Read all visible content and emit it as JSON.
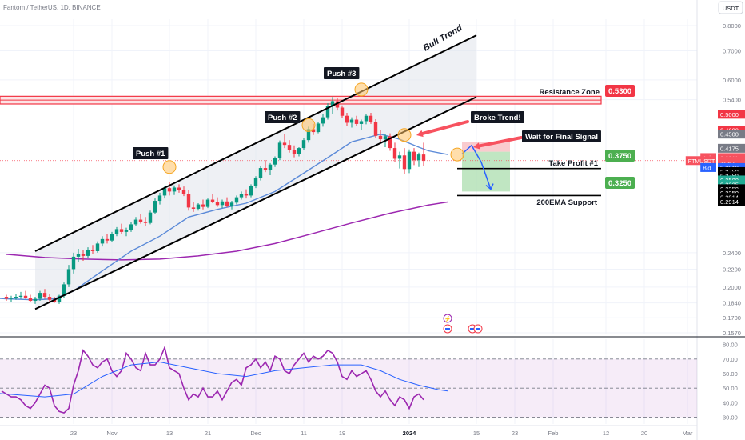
{
  "header": {
    "symbol_line": "Fantom / TetherUS, 1D, BINANCE",
    "currency": "USDT"
  },
  "chart_data": {
    "type": "candlestick",
    "price_axis": {
      "scale": "log",
      "ticks": [
        "0.8000",
        "0.7000",
        "0.6000",
        "0.5400",
        "0.4175",
        "0.3911",
        "11:57",
        "0.3911",
        "0.3910",
        "0.3750",
        "0.3750",
        "0.3500",
        "0.3325",
        "0.3250",
        "0.3250",
        "0.2914",
        "0.2914",
        "0.2400",
        "0.2200",
        "0.2000",
        "0.1840",
        "0.1700",
        "0.1570"
      ],
      "plain_ticks": [
        {
          "value": 0.8,
          "label": "0.8000"
        },
        {
          "value": 0.7,
          "label": "0.7000"
        },
        {
          "value": 0.6,
          "label": "0.6000"
        },
        {
          "value": 0.54,
          "label": "0.5400"
        },
        {
          "value": 0.24,
          "label": "0.2400"
        },
        {
          "value": 0.22,
          "label": "0.2200"
        },
        {
          "value": 0.2,
          "label": "0.2000"
        },
        {
          "value": 0.184,
          "label": "0.1840"
        },
        {
          "value": 0.17,
          "label": "0.1700"
        },
        {
          "value": 0.157,
          "label": "0.1570"
        }
      ],
      "badges": [
        {
          "label": "0.5000",
          "value": 0.5,
          "bg": "#f23645",
          "fg": "#ffffff"
        },
        {
          "label": "0.4600",
          "value": 0.46,
          "bg": "#f23645",
          "fg": "#ffffff"
        },
        {
          "label": "0.4500",
          "value": 0.45,
          "bg": "#787b86",
          "fg": "#ffffff"
        },
        {
          "label": "0.4175",
          "value": 0.4175,
          "bg": "#787b86",
          "fg": "#ffffff"
        },
        {
          "label": "0.3911",
          "value": 0.3975,
          "bg": "#f7525f",
          "fg": "#ffffff",
          "tag": "Ask"
        },
        {
          "label": "0.3911",
          "value": 0.3911,
          "bg": "#f7525f",
          "fg": "#ffffff",
          "tag": "FTMUSDT"
        },
        {
          "label": "11:57",
          "value": 0.386,
          "bg": "#f7525f",
          "fg": "#ffffff"
        },
        {
          "label": "0.3910",
          "value": 0.377,
          "bg": "#2962ff",
          "fg": "#ffffff",
          "tag": "Bid"
        },
        {
          "label": "0.3750",
          "value": 0.369,
          "bg": "#000000",
          "fg": "#ffffff"
        },
        {
          "label": "0.3750",
          "value": 0.361,
          "bg": "#000000",
          "fg": "#ffffff"
        },
        {
          "label": "0.3500",
          "value": 0.353,
          "bg": "#22ab94",
          "fg": "#ffffff"
        },
        {
          "label": "0.3325",
          "value": 0.345,
          "bg": "#22ab94",
          "fg": "#ffffff"
        },
        {
          "label": "0.3250",
          "value": 0.337,
          "bg": "#000000",
          "fg": "#ffffff"
        },
        {
          "label": "0.3250",
          "value": 0.3295,
          "bg": "#000000",
          "fg": "#ffffff"
        },
        {
          "label": "0.2914",
          "value": 0.322,
          "bg": "#000000",
          "fg": "#ffffff"
        },
        {
          "label": "0.2914",
          "value": 0.3148,
          "bg": "#000000",
          "fg": "#ffffff"
        }
      ]
    },
    "time_axis": {
      "labels": [
        {
          "label": "23",
          "bar": 14
        },
        {
          "label": "Nov",
          "bar": 22
        },
        {
          "label": "13",
          "bar": 34
        },
        {
          "label": "21",
          "bar": 42
        },
        {
          "label": "Dec",
          "bar": 52
        },
        {
          "label": "11",
          "bar": 62
        },
        {
          "label": "19",
          "bar": 70
        },
        {
          "label": "2024",
          "bar": 84
        },
        {
          "label": "15",
          "bar": 98
        },
        {
          "label": "23",
          "bar": 106
        },
        {
          "label": "Feb",
          "bar": 114
        },
        {
          "label": "12",
          "bar": 125
        },
        {
          "label": "20",
          "bar": 133
        },
        {
          "label": "Mar",
          "bar": 142
        }
      ]
    },
    "candles": [
      [
        0.19,
        0.192,
        0.186,
        0.188
      ],
      [
        0.188,
        0.191,
        0.185,
        0.189
      ],
      [
        0.189,
        0.193,
        0.187,
        0.19
      ],
      [
        0.19,
        0.195,
        0.188,
        0.191
      ],
      [
        0.191,
        0.196,
        0.188,
        0.189
      ],
      [
        0.189,
        0.192,
        0.185,
        0.186
      ],
      [
        0.186,
        0.19,
        0.183,
        0.188
      ],
      [
        0.188,
        0.196,
        0.186,
        0.194
      ],
      [
        0.194,
        0.198,
        0.188,
        0.19
      ],
      [
        0.19,
        0.193,
        0.184,
        0.187
      ],
      [
        0.187,
        0.19,
        0.184,
        0.185
      ],
      [
        0.185,
        0.192,
        0.183,
        0.191
      ],
      [
        0.191,
        0.205,
        0.189,
        0.203
      ],
      [
        0.203,
        0.225,
        0.2,
        0.22
      ],
      [
        0.22,
        0.24,
        0.215,
        0.235
      ],
      [
        0.235,
        0.245,
        0.228,
        0.238
      ],
      [
        0.238,
        0.243,
        0.23,
        0.236
      ],
      [
        0.236,
        0.247,
        0.233,
        0.244
      ],
      [
        0.244,
        0.25,
        0.238,
        0.242
      ],
      [
        0.242,
        0.255,
        0.24,
        0.252
      ],
      [
        0.252,
        0.262,
        0.248,
        0.258
      ],
      [
        0.258,
        0.265,
        0.252,
        0.256
      ],
      [
        0.256,
        0.268,
        0.254,
        0.265
      ],
      [
        0.265,
        0.275,
        0.262,
        0.272
      ],
      [
        0.272,
        0.28,
        0.265,
        0.268
      ],
      [
        0.268,
        0.274,
        0.262,
        0.271
      ],
      [
        0.271,
        0.282,
        0.268,
        0.279
      ],
      [
        0.279,
        0.29,
        0.276,
        0.286
      ],
      [
        0.286,
        0.295,
        0.28,
        0.283
      ],
      [
        0.283,
        0.29,
        0.276,
        0.281
      ],
      [
        0.281,
        0.3,
        0.279,
        0.297
      ],
      [
        0.297,
        0.32,
        0.295,
        0.316
      ],
      [
        0.316,
        0.33,
        0.31,
        0.325
      ],
      [
        0.325,
        0.342,
        0.32,
        0.338
      ],
      [
        0.338,
        0.35,
        0.325,
        0.332
      ],
      [
        0.332,
        0.343,
        0.326,
        0.339
      ],
      [
        0.339,
        0.345,
        0.33,
        0.335
      ],
      [
        0.335,
        0.341,
        0.324,
        0.328
      ],
      [
        0.328,
        0.334,
        0.3,
        0.305
      ],
      [
        0.305,
        0.314,
        0.298,
        0.303
      ],
      [
        0.303,
        0.312,
        0.3,
        0.31
      ],
      [
        0.31,
        0.318,
        0.302,
        0.306
      ],
      [
        0.306,
        0.32,
        0.304,
        0.318
      ],
      [
        0.318,
        0.328,
        0.312,
        0.314
      ],
      [
        0.314,
        0.322,
        0.306,
        0.309
      ],
      [
        0.309,
        0.318,
        0.304,
        0.315
      ],
      [
        0.315,
        0.322,
        0.305,
        0.308
      ],
      [
        0.308,
        0.316,
        0.302,
        0.313
      ],
      [
        0.313,
        0.325,
        0.31,
        0.322
      ],
      [
        0.322,
        0.332,
        0.318,
        0.328
      ],
      [
        0.328,
        0.336,
        0.32,
        0.325
      ],
      [
        0.325,
        0.345,
        0.322,
        0.342
      ],
      [
        0.342,
        0.36,
        0.338,
        0.356
      ],
      [
        0.356,
        0.38,
        0.352,
        0.376
      ],
      [
        0.376,
        0.392,
        0.368,
        0.372
      ],
      [
        0.372,
        0.386,
        0.362,
        0.383
      ],
      [
        0.383,
        0.4,
        0.378,
        0.396
      ],
      [
        0.396,
        0.435,
        0.392,
        0.43
      ],
      [
        0.43,
        0.45,
        0.418,
        0.425
      ],
      [
        0.425,
        0.436,
        0.408,
        0.414
      ],
      [
        0.414,
        0.424,
        0.398,
        0.405
      ],
      [
        0.405,
        0.42,
        0.4,
        0.418
      ],
      [
        0.418,
        0.44,
        0.414,
        0.436
      ],
      [
        0.436,
        0.468,
        0.43,
        0.462
      ],
      [
        0.462,
        0.475,
        0.448,
        0.455
      ],
      [
        0.455,
        0.48,
        0.452,
        0.476
      ],
      [
        0.476,
        0.5,
        0.468,
        0.492
      ],
      [
        0.492,
        0.53,
        0.486,
        0.522
      ],
      [
        0.522,
        0.548,
        0.5,
        0.536
      ],
      [
        0.536,
        0.544,
        0.51,
        0.518
      ],
      [
        0.518,
        0.524,
        0.49,
        0.496
      ],
      [
        0.496,
        0.504,
        0.47,
        0.478
      ],
      [
        0.478,
        0.492,
        0.466,
        0.486
      ],
      [
        0.486,
        0.496,
        0.47,
        0.475
      ],
      [
        0.475,
        0.486,
        0.46,
        0.482
      ],
      [
        0.482,
        0.5,
        0.474,
        0.496
      ],
      [
        0.496,
        0.504,
        0.475,
        0.48
      ],
      [
        0.48,
        0.487,
        0.44,
        0.446
      ],
      [
        0.446,
        0.46,
        0.43,
        0.438
      ],
      [
        0.438,
        0.45,
        0.42,
        0.445
      ],
      [
        0.445,
        0.452,
        0.412,
        0.418
      ],
      [
        0.418,
        0.43,
        0.388,
        0.395
      ],
      [
        0.395,
        0.41,
        0.375,
        0.402
      ],
      [
        0.402,
        0.418,
        0.365,
        0.374
      ],
      [
        0.374,
        0.415,
        0.366,
        0.41
      ],
      [
        0.41,
        0.418,
        0.382,
        0.392
      ],
      [
        0.392,
        0.408,
        0.378,
        0.404
      ],
      [
        0.404,
        0.43,
        0.38,
        0.391
      ]
    ],
    "first_candle_bar": 0,
    "bar_spacing_px": 6,
    "ema200": [
      [
        0,
        0.238
      ],
      [
        8,
        0.234
      ],
      [
        16,
        0.232
      ],
      [
        24,
        0.231
      ],
      [
        32,
        0.232
      ],
      [
        40,
        0.236
      ],
      [
        48,
        0.242
      ],
      [
        56,
        0.252
      ],
      [
        64,
        0.266
      ],
      [
        72,
        0.281
      ],
      [
        80,
        0.296
      ],
      [
        88,
        0.309
      ],
      [
        92,
        0.314
      ]
    ],
    "ema_short": [
      [
        -8,
        0.19
      ],
      [
        0,
        0.188
      ],
      [
        6,
        0.187
      ],
      [
        10,
        0.188
      ],
      [
        14,
        0.196
      ],
      [
        20,
        0.218
      ],
      [
        26,
        0.242
      ],
      [
        32,
        0.262
      ],
      [
        38,
        0.29
      ],
      [
        44,
        0.302
      ],
      [
        50,
        0.312
      ],
      [
        56,
        0.332
      ],
      [
        62,
        0.366
      ],
      [
        68,
        0.404
      ],
      [
        72,
        0.432
      ],
      [
        78,
        0.45
      ],
      [
        82,
        0.438
      ],
      [
        86,
        0.42
      ],
      [
        88,
        0.412
      ],
      [
        92,
        0.404
      ]
    ],
    "channel": {
      "lower": [
        [
          6,
          0.178
        ],
        [
          98,
          0.548
        ]
      ],
      "upper": [
        [
          6,
          0.242
        ],
        [
          98,
          0.76
        ]
      ],
      "fill_to_bar": 98
    },
    "resistance_zone": {
      "low": 0.528,
      "high": 0.55,
      "to_bar": 124
    },
    "take_profit_1": {
      "value": 0.375,
      "from_bar": 94,
      "to_bar": 124
    },
    "support_line": {
      "value": 0.325,
      "from_bar": 94,
      "to_bar": 124
    },
    "risk_box": {
      "from_bar": 95,
      "to_bar": 105,
      "top": 0.432,
      "bottom": 0.41
    },
    "reward_box": {
      "from_bar": 95,
      "to_bar": 105,
      "top": 0.41,
      "bottom": 0.332
    },
    "projection_path": [
      [
        95,
        0.405
      ],
      [
        97,
        0.424
      ],
      [
        99,
        0.388
      ],
      [
        101,
        0.336
      ]
    ],
    "push_markers": [
      {
        "bar": 34,
        "value": 0.378
      },
      {
        "bar": 63,
        "value": 0.472
      },
      {
        "bar": 74,
        "value": 0.57
      },
      {
        "bar": 83,
        "value": 0.448
      },
      {
        "bar": 94,
        "value": 0.404
      }
    ],
    "labels": {
      "push1": "Push #1",
      "push2": "Push #2",
      "push3": "Push #3",
      "bull_trend": "Bull Trend",
      "resistance_zone": "Resistance Zone",
      "resistance_price": "0.5300",
      "broke_trend": "Broke Trend!",
      "wait_signal": "Wait for Final Signal",
      "take_profit": "Take Profit #1",
      "tp_price": "0.3750",
      "support": "200EMA Support",
      "support_price": "0.3250"
    },
    "rsi": {
      "ticks": [
        {
          "value": 80,
          "label": "80.00"
        },
        {
          "value": 70,
          "label": "70.00"
        },
        {
          "value": 60,
          "label": "60.00"
        },
        {
          "value": 50,
          "label": "50.00"
        },
        {
          "value": 40,
          "label": "40.00"
        },
        {
          "value": 30,
          "label": "30.00"
        }
      ],
      "band": [
        30,
        70
      ],
      "values": [
        48,
        46,
        44,
        44,
        42,
        38,
        36,
        40,
        46,
        52,
        50,
        38,
        34,
        33,
        36,
        52,
        62,
        76,
        72,
        66,
        64,
        68,
        70,
        62,
        58,
        62,
        74,
        70,
        64,
        62,
        74,
        66,
        66,
        70,
        78,
        64,
        62,
        60,
        50,
        42,
        46,
        44,
        50,
        44,
        44,
        48,
        42,
        48,
        54,
        56,
        52,
        64,
        66,
        70,
        64,
        68,
        62,
        72,
        70,
        62,
        60,
        66,
        70,
        74,
        68,
        72,
        70,
        72,
        76,
        74,
        68,
        58,
        56,
        62,
        58,
        60,
        62,
        56,
        48,
        44,
        48,
        42,
        38,
        44,
        42,
        36,
        44,
        46,
        42
      ],
      "ma": [
        [
          -8,
          48
        ],
        [
          0,
          46
        ],
        [
          8,
          44
        ],
        [
          14,
          46
        ],
        [
          20,
          58
        ],
        [
          26,
          66
        ],
        [
          32,
          68
        ],
        [
          38,
          64
        ],
        [
          44,
          60
        ],
        [
          50,
          58
        ],
        [
          56,
          62
        ],
        [
          62,
          64
        ],
        [
          68,
          66
        ],
        [
          74,
          66
        ],
        [
          78,
          62
        ],
        [
          82,
          56
        ],
        [
          86,
          52
        ],
        [
          90,
          49
        ],
        [
          92,
          48
        ]
      ]
    }
  }
}
